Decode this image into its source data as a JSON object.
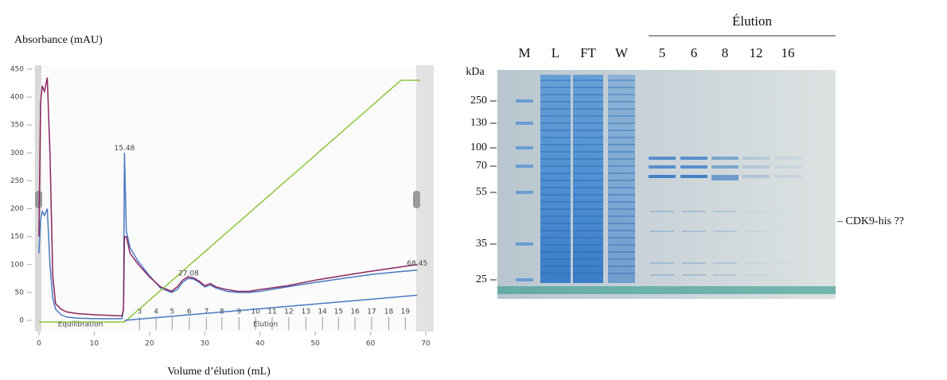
{
  "chart_data": {
    "type": "line",
    "title": "Absorbance (mAU)",
    "x_label": "Volume d’élution (mL)",
    "xlim": [
      -1,
      71
    ],
    "xticks": [
      0,
      10,
      20,
      30,
      40,
      50,
      60,
      70
    ],
    "ylim": [
      -15,
      450
    ],
    "yticks": [
      0,
      50,
      100,
      150,
      200,
      250,
      300,
      350,
      400,
      450
    ],
    "grid": false,
    "series": [
      {
        "color": "#4a78c2",
        "x": [
          0,
          0.3,
          0.6,
          1,
          1.5,
          2,
          2.5,
          3,
          4,
          5,
          7,
          10,
          15,
          15.3,
          15.48,
          15.8,
          16.5,
          18,
          20,
          22,
          24,
          25,
          26,
          27,
          28,
          29,
          30,
          31,
          32,
          34,
          36,
          38,
          40,
          45,
          50,
          55,
          60,
          65,
          68.45
        ],
        "values": [
          120,
          180,
          195,
          188,
          200,
          100,
          40,
          20,
          10,
          6,
          4,
          3,
          3,
          20,
          300,
          160,
          130,
          105,
          80,
          58,
          50,
          55,
          68,
          75,
          74,
          68,
          60,
          63,
          58,
          52,
          50,
          50,
          52,
          60,
          68,
          75,
          82,
          87,
          90
        ]
      },
      {
        "color": "#8b2560",
        "x": [
          0,
          0.3,
          0.6,
          1,
          1.5,
          2,
          2.5,
          3,
          4,
          5,
          7,
          10,
          15,
          15.3,
          15.48,
          15.8,
          16.5,
          18,
          20,
          22,
          24,
          25,
          26,
          27,
          28,
          29,
          30,
          31,
          32,
          34,
          36,
          38,
          40,
          45,
          50,
          55,
          60,
          65,
          68.45
        ],
        "values": [
          150,
          390,
          420,
          410,
          435,
          300,
          80,
          30,
          20,
          15,
          12,
          10,
          8,
          20,
          150,
          150,
          120,
          100,
          78,
          60,
          52,
          60,
          72,
          78,
          76,
          70,
          62,
          66,
          60,
          55,
          52,
          52,
          55,
          62,
          72,
          80,
          88,
          95,
          100
        ]
      },
      {
        "color": "#8cc63f",
        "x": [
          0,
          15.48,
          65.5,
          69
        ],
        "values": [
          -3,
          -3,
          430,
          430
        ]
      },
      {
        "color": "#4a78c2",
        "x": [
          15.48,
          68.45
        ],
        "values": [
          0,
          45
        ]
      }
    ],
    "annotations": [
      {
        "text": "15.48",
        "x": 15.48,
        "y": 308
      },
      {
        "text": "27.08",
        "x": 27.08,
        "y": 84
      },
      {
        "text": "68.45",
        "x": 68.45,
        "y": 102
      }
    ],
    "regions": [
      {
        "text": "Equilibration",
        "x": 7.5
      },
      {
        "text": "Elution",
        "x": 41
      }
    ],
    "fraction_labels": [
      3,
      4,
      5,
      6,
      7,
      8,
      9,
      10,
      11,
      12,
      13,
      14,
      15,
      16,
      17,
      18,
      19
    ],
    "fraction_x": [
      18.2,
      21.2,
      24.1,
      27.2,
      30.3,
      33.1,
      36.2,
      39.2,
      42.2,
      45.2,
      48.3,
      51.3,
      54.2,
      57.2,
      60.2,
      63.3,
      66.3
    ]
  },
  "gel": {
    "group_label": "Élution",
    "unit": "kDa",
    "lanes": [
      "M",
      "L",
      "FT",
      "W",
      "5",
      "6",
      "8",
      "12",
      "16"
    ],
    "markers": [
      250,
      130,
      100,
      70,
      55,
      35,
      25
    ],
    "annotation": "– CDK9-his ??"
  }
}
